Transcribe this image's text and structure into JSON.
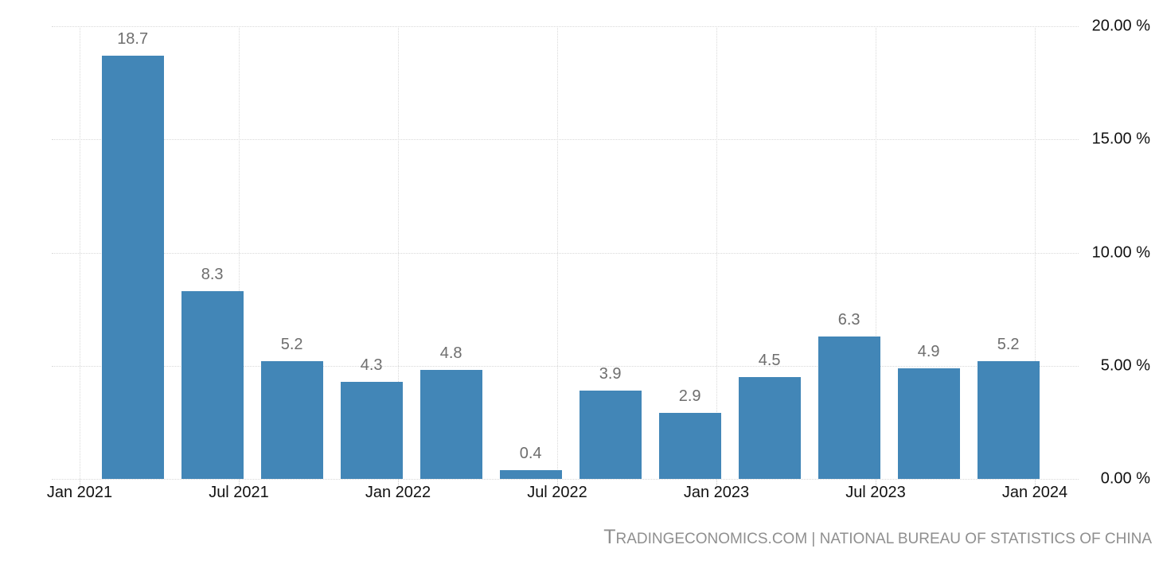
{
  "chart_data": {
    "type": "bar",
    "title": "",
    "x": [
      "Mar 2021",
      "Jun 2021",
      "Sep 2021",
      "Dec 2021",
      "Mar 2022",
      "Jun 2022",
      "Sep 2022",
      "Dec 2022",
      "Mar 2023",
      "Jun 2023",
      "Sep 2023",
      "Dec 2023"
    ],
    "values": [
      18.7,
      8.3,
      5.2,
      4.3,
      4.8,
      0.4,
      3.9,
      2.9,
      4.5,
      6.3,
      4.9,
      5.2
    ],
    "data_labels": [
      "18.7",
      "8.3",
      "5.2",
      "4.3",
      "4.8",
      "0.4",
      "3.9",
      "2.9",
      "4.5",
      "6.3",
      "4.9",
      "5.2"
    ],
    "x_tick_labels": [
      "Jan 2021",
      "Jul 2021",
      "Jan 2022",
      "Jul 2022",
      "Jan 2023",
      "Jul 2023",
      "Jan 2024"
    ],
    "y_tick_labels": [
      "20.00 %",
      "15.00 %",
      "10.00 %",
      "5.00 %",
      "0.00 %"
    ],
    "y_tick_values": [
      20,
      15,
      10,
      5,
      0
    ],
    "ylim": [
      0,
      20
    ],
    "xlabel": "",
    "ylabel": "",
    "grid": "dotted",
    "legend": "none",
    "bar_color": "#4286b7",
    "data_label_color": "#6e6e6e",
    "axis_label_color": "#111111",
    "grid_color": "#d9d9d9"
  },
  "footer": {
    "brand_initial": "T",
    "brand_rest": "RADINGECONOMICS.COM",
    "separator": " | ",
    "source": "NATIONAL BUREAU OF STATISTICS OF CHINA"
  }
}
